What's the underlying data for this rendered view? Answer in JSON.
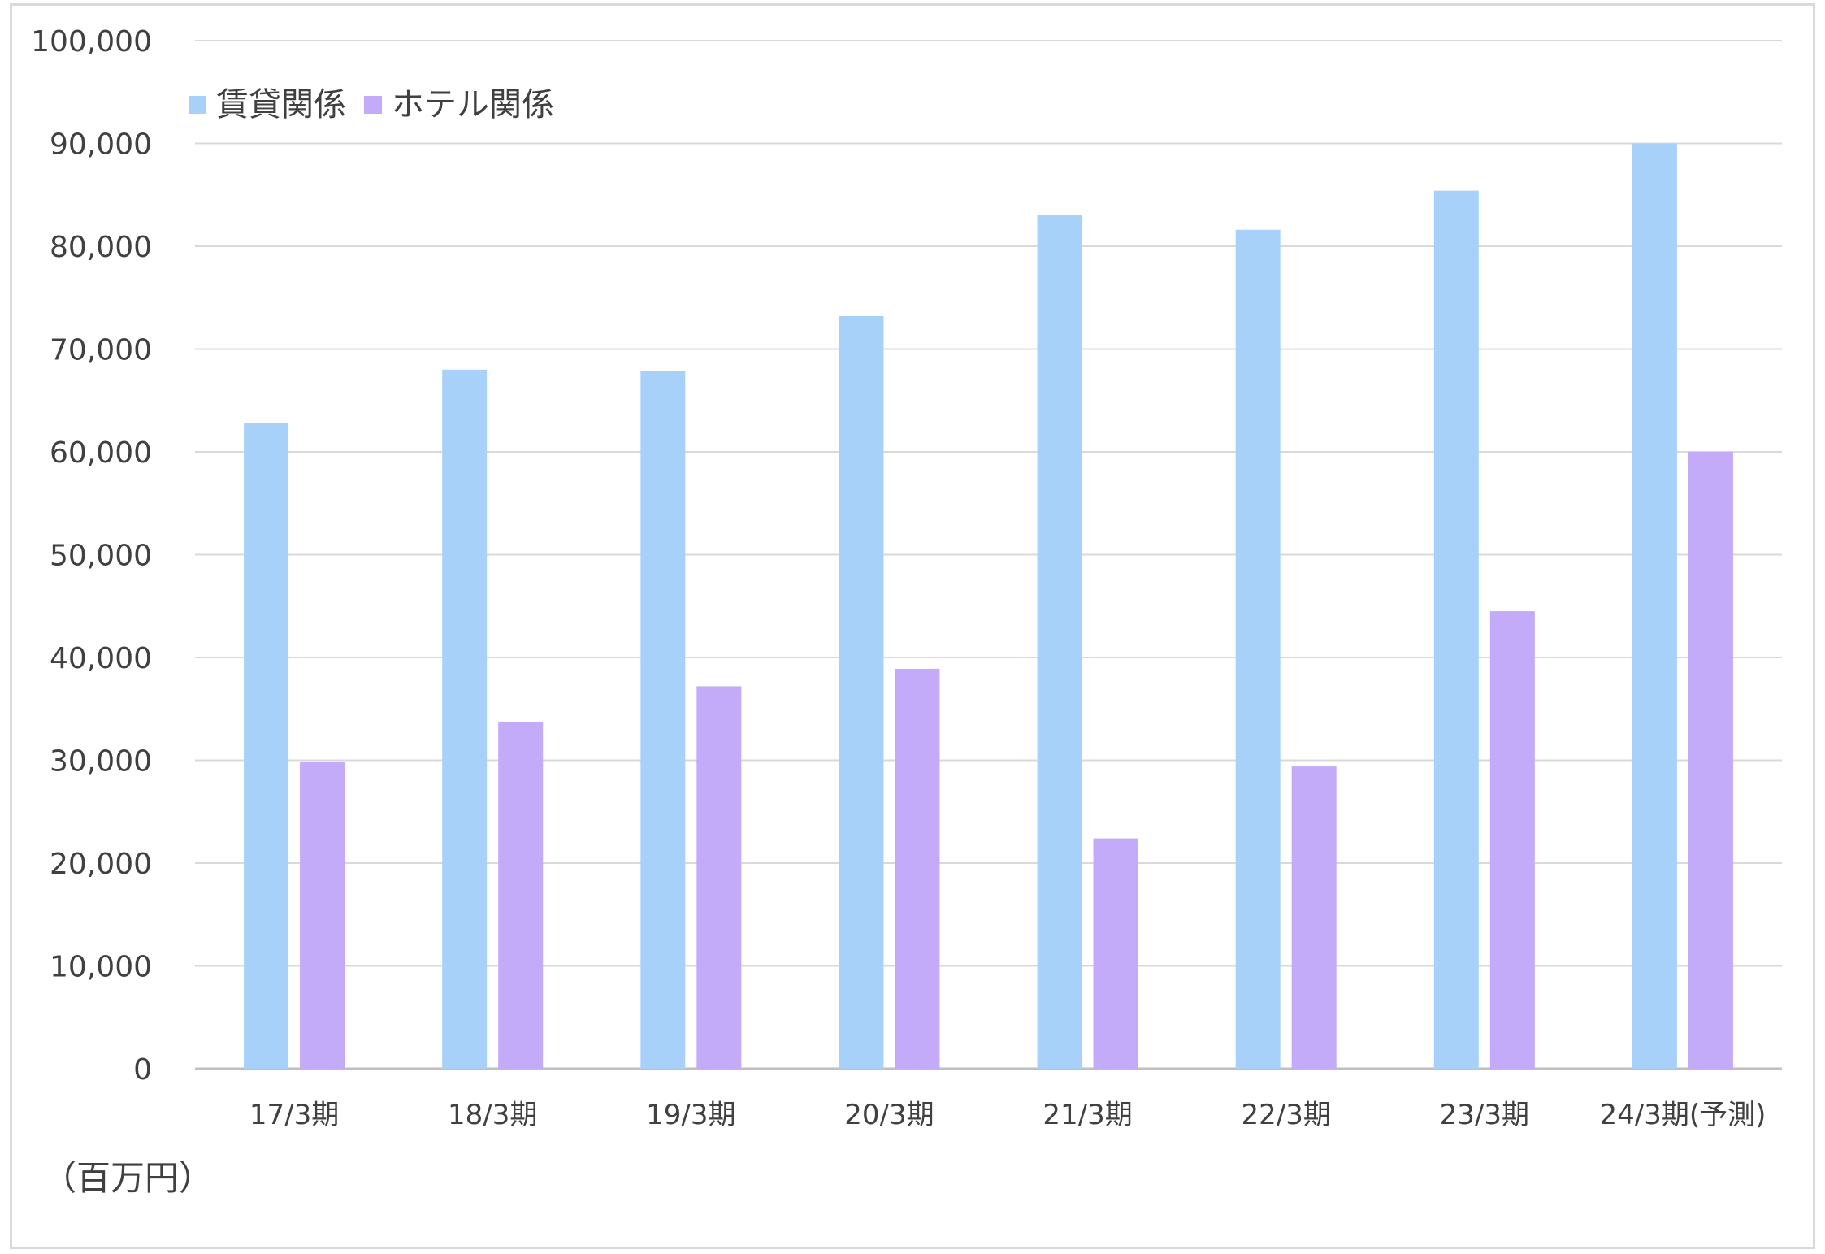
{
  "chart_data": {
    "type": "bar",
    "title": "",
    "xlabel": "",
    "ylabel": "",
    "unit_label": "（百万円）",
    "categories": [
      "17/3期",
      "18/3期",
      "19/3期",
      "20/3期",
      "21/3期",
      "22/3期",
      "23/3期",
      "24/3期(予測)"
    ],
    "series": [
      {
        "name": "賃貸関係",
        "color": "#a8d1fa",
        "values": [
          62800,
          68000,
          67900,
          73200,
          83000,
          81600,
          85400,
          90000
        ]
      },
      {
        "name": "ホテル関係",
        "color": "#c3abfa",
        "values": [
          29800,
          33700,
          37200,
          38900,
          22400,
          29400,
          44500,
          60000
        ]
      }
    ],
    "ylim": [
      0,
      100000
    ],
    "y_ticks": [
      "0",
      "10,000",
      "20,000",
      "30,000",
      "40,000",
      "50,000",
      "60,000",
      "70,000",
      "80,000",
      "90,000",
      "100,000"
    ],
    "grid": true,
    "legend_position": "top-left"
  }
}
